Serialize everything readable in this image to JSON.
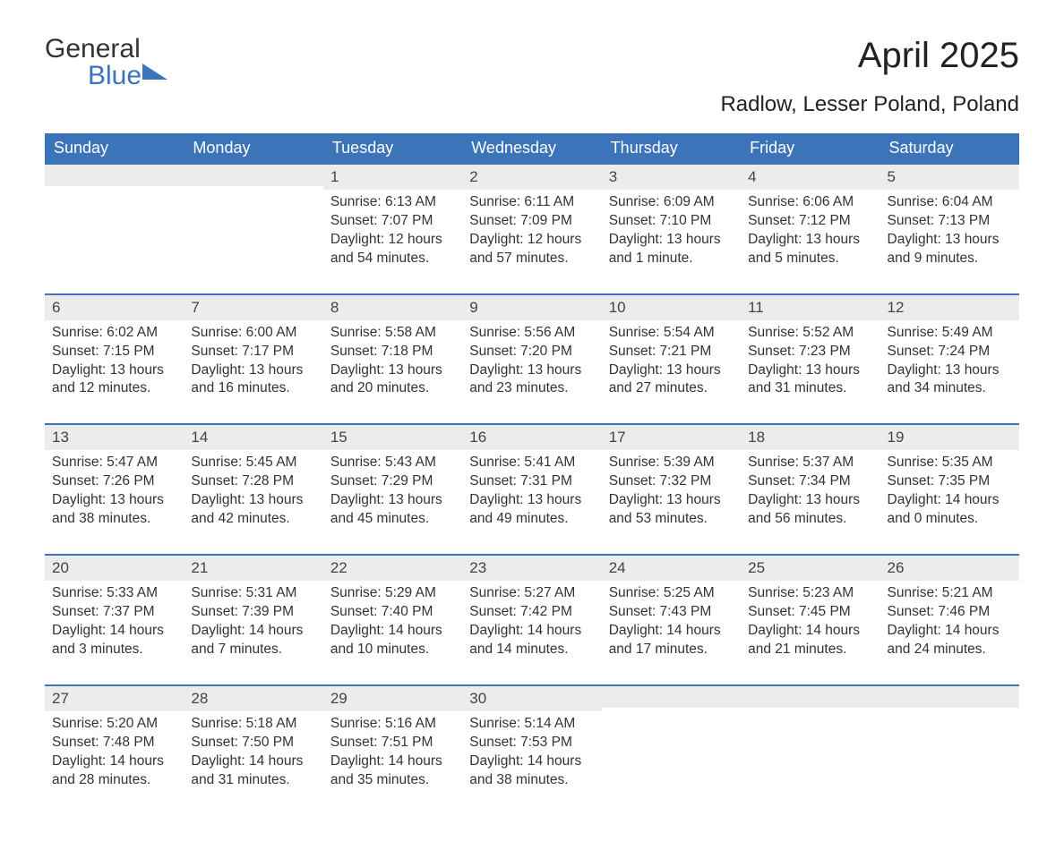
{
  "logo": {
    "word1": "General",
    "word2": "Blue"
  },
  "title": "April 2025",
  "location": "Radlow, Lesser Poland, Poland",
  "colors": {
    "header_bg": "#3b74b9",
    "header_text": "#ffffff",
    "daynum_bg": "#ececec",
    "daynum_border": "#3b74b9",
    "body_text": "#333333",
    "page_bg": "#ffffff"
  },
  "weekdays": [
    "Sunday",
    "Monday",
    "Tuesday",
    "Wednesday",
    "Thursday",
    "Friday",
    "Saturday"
  ],
  "weeks": [
    [
      null,
      null,
      {
        "day": "1",
        "sunrise": "Sunrise: 6:13 AM",
        "sunset": "Sunset: 7:07 PM",
        "dl1": "Daylight: 12 hours",
        "dl2": "and 54 minutes."
      },
      {
        "day": "2",
        "sunrise": "Sunrise: 6:11 AM",
        "sunset": "Sunset: 7:09 PM",
        "dl1": "Daylight: 12 hours",
        "dl2": "and 57 minutes."
      },
      {
        "day": "3",
        "sunrise": "Sunrise: 6:09 AM",
        "sunset": "Sunset: 7:10 PM",
        "dl1": "Daylight: 13 hours",
        "dl2": "and 1 minute."
      },
      {
        "day": "4",
        "sunrise": "Sunrise: 6:06 AM",
        "sunset": "Sunset: 7:12 PM",
        "dl1": "Daylight: 13 hours",
        "dl2": "and 5 minutes."
      },
      {
        "day": "5",
        "sunrise": "Sunrise: 6:04 AM",
        "sunset": "Sunset: 7:13 PM",
        "dl1": "Daylight: 13 hours",
        "dl2": "and 9 minutes."
      }
    ],
    [
      {
        "day": "6",
        "sunrise": "Sunrise: 6:02 AM",
        "sunset": "Sunset: 7:15 PM",
        "dl1": "Daylight: 13 hours",
        "dl2": "and 12 minutes."
      },
      {
        "day": "7",
        "sunrise": "Sunrise: 6:00 AM",
        "sunset": "Sunset: 7:17 PM",
        "dl1": "Daylight: 13 hours",
        "dl2": "and 16 minutes."
      },
      {
        "day": "8",
        "sunrise": "Sunrise: 5:58 AM",
        "sunset": "Sunset: 7:18 PM",
        "dl1": "Daylight: 13 hours",
        "dl2": "and 20 minutes."
      },
      {
        "day": "9",
        "sunrise": "Sunrise: 5:56 AM",
        "sunset": "Sunset: 7:20 PM",
        "dl1": "Daylight: 13 hours",
        "dl2": "and 23 minutes."
      },
      {
        "day": "10",
        "sunrise": "Sunrise: 5:54 AM",
        "sunset": "Sunset: 7:21 PM",
        "dl1": "Daylight: 13 hours",
        "dl2": "and 27 minutes."
      },
      {
        "day": "11",
        "sunrise": "Sunrise: 5:52 AM",
        "sunset": "Sunset: 7:23 PM",
        "dl1": "Daylight: 13 hours",
        "dl2": "and 31 minutes."
      },
      {
        "day": "12",
        "sunrise": "Sunrise: 5:49 AM",
        "sunset": "Sunset: 7:24 PM",
        "dl1": "Daylight: 13 hours",
        "dl2": "and 34 minutes."
      }
    ],
    [
      {
        "day": "13",
        "sunrise": "Sunrise: 5:47 AM",
        "sunset": "Sunset: 7:26 PM",
        "dl1": "Daylight: 13 hours",
        "dl2": "and 38 minutes."
      },
      {
        "day": "14",
        "sunrise": "Sunrise: 5:45 AM",
        "sunset": "Sunset: 7:28 PM",
        "dl1": "Daylight: 13 hours",
        "dl2": "and 42 minutes."
      },
      {
        "day": "15",
        "sunrise": "Sunrise: 5:43 AM",
        "sunset": "Sunset: 7:29 PM",
        "dl1": "Daylight: 13 hours",
        "dl2": "and 45 minutes."
      },
      {
        "day": "16",
        "sunrise": "Sunrise: 5:41 AM",
        "sunset": "Sunset: 7:31 PM",
        "dl1": "Daylight: 13 hours",
        "dl2": "and 49 minutes."
      },
      {
        "day": "17",
        "sunrise": "Sunrise: 5:39 AM",
        "sunset": "Sunset: 7:32 PM",
        "dl1": "Daylight: 13 hours",
        "dl2": "and 53 minutes."
      },
      {
        "day": "18",
        "sunrise": "Sunrise: 5:37 AM",
        "sunset": "Sunset: 7:34 PM",
        "dl1": "Daylight: 13 hours",
        "dl2": "and 56 minutes."
      },
      {
        "day": "19",
        "sunrise": "Sunrise: 5:35 AM",
        "sunset": "Sunset: 7:35 PM",
        "dl1": "Daylight: 14 hours",
        "dl2": "and 0 minutes."
      }
    ],
    [
      {
        "day": "20",
        "sunrise": "Sunrise: 5:33 AM",
        "sunset": "Sunset: 7:37 PM",
        "dl1": "Daylight: 14 hours",
        "dl2": "and 3 minutes."
      },
      {
        "day": "21",
        "sunrise": "Sunrise: 5:31 AM",
        "sunset": "Sunset: 7:39 PM",
        "dl1": "Daylight: 14 hours",
        "dl2": "and 7 minutes."
      },
      {
        "day": "22",
        "sunrise": "Sunrise: 5:29 AM",
        "sunset": "Sunset: 7:40 PM",
        "dl1": "Daylight: 14 hours",
        "dl2": "and 10 minutes."
      },
      {
        "day": "23",
        "sunrise": "Sunrise: 5:27 AM",
        "sunset": "Sunset: 7:42 PM",
        "dl1": "Daylight: 14 hours",
        "dl2": "and 14 minutes."
      },
      {
        "day": "24",
        "sunrise": "Sunrise: 5:25 AM",
        "sunset": "Sunset: 7:43 PM",
        "dl1": "Daylight: 14 hours",
        "dl2": "and 17 minutes."
      },
      {
        "day": "25",
        "sunrise": "Sunrise: 5:23 AM",
        "sunset": "Sunset: 7:45 PM",
        "dl1": "Daylight: 14 hours",
        "dl2": "and 21 minutes."
      },
      {
        "day": "26",
        "sunrise": "Sunrise: 5:21 AM",
        "sunset": "Sunset: 7:46 PM",
        "dl1": "Daylight: 14 hours",
        "dl2": "and 24 minutes."
      }
    ],
    [
      {
        "day": "27",
        "sunrise": "Sunrise: 5:20 AM",
        "sunset": "Sunset: 7:48 PM",
        "dl1": "Daylight: 14 hours",
        "dl2": "and 28 minutes."
      },
      {
        "day": "28",
        "sunrise": "Sunrise: 5:18 AM",
        "sunset": "Sunset: 7:50 PM",
        "dl1": "Daylight: 14 hours",
        "dl2": "and 31 minutes."
      },
      {
        "day": "29",
        "sunrise": "Sunrise: 5:16 AM",
        "sunset": "Sunset: 7:51 PM",
        "dl1": "Daylight: 14 hours",
        "dl2": "and 35 minutes."
      },
      {
        "day": "30",
        "sunrise": "Sunrise: 5:14 AM",
        "sunset": "Sunset: 7:53 PM",
        "dl1": "Daylight: 14 hours",
        "dl2": "and 38 minutes."
      },
      null,
      null,
      null
    ]
  ]
}
